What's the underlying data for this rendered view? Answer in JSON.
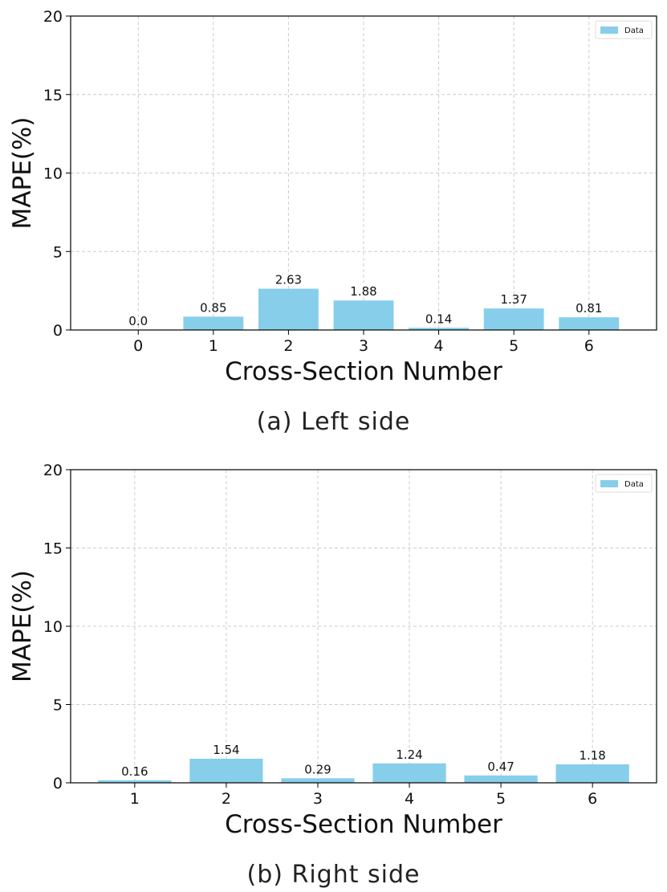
{
  "colors": {
    "bar": "#87ceeb",
    "grid": "#cccccc",
    "axis": "#000000"
  },
  "chart_data": [
    {
      "type": "bar",
      "caption": "(a) Left side",
      "xlabel": "Cross-Section Number",
      "ylabel": "MAPE(%)",
      "ylim": [
        0,
        20
      ],
      "yticks": [
        0,
        5,
        10,
        15,
        20
      ],
      "categories": [
        "0",
        "1",
        "2",
        "3",
        "4",
        "5",
        "6"
      ],
      "values": [
        0.0,
        0.85,
        2.63,
        1.88,
        0.14,
        1.37,
        0.81
      ],
      "value_labels": [
        "0.0",
        "0.85",
        "2.63",
        "1.88",
        "0.14",
        "1.37",
        "0.81"
      ],
      "series_name": "Data",
      "legend": "top-right",
      "grid": true
    },
    {
      "type": "bar",
      "caption": "(b) Right side",
      "xlabel": "Cross-Section Number",
      "ylabel": "MAPE(%)",
      "ylim": [
        0,
        20
      ],
      "yticks": [
        0,
        5,
        10,
        15,
        20
      ],
      "categories": [
        "1",
        "2",
        "3",
        "4",
        "5",
        "6"
      ],
      "values": [
        0.16,
        1.54,
        0.29,
        1.24,
        0.47,
        1.18
      ],
      "value_labels": [
        "0.16",
        "1.54",
        "0.29",
        "1.24",
        "0.47",
        "1.18"
      ],
      "series_name": "Data",
      "legend": "top-right",
      "grid": true
    }
  ]
}
